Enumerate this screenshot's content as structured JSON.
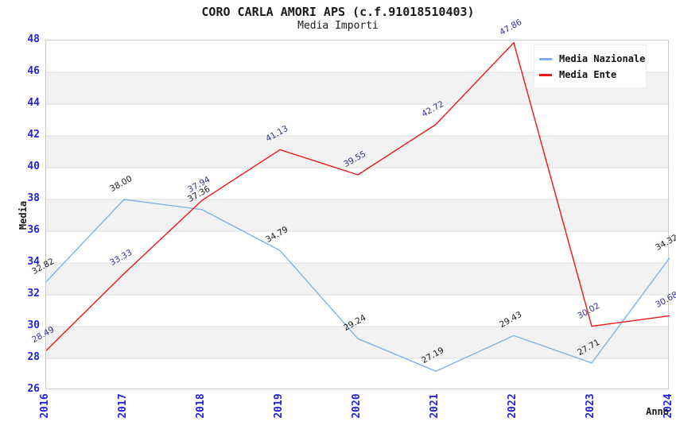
{
  "chart_data": {
    "type": "line",
    "title": "CORO CARLA AMORI APS (c.f.91018510403)",
    "subtitle": "Media Importi",
    "xlabel": "Anno",
    "ylabel": "Media",
    "categories": [
      "2016",
      "2017",
      "2018",
      "2019",
      "2020",
      "2021",
      "2022",
      "2023",
      "2024"
    ],
    "series": [
      {
        "name": "Media Nazionale",
        "line_color": "#7db3e8",
        "label_color": "#1a1a1a",
        "values": [
          32.82,
          38.0,
          37.36,
          34.79,
          29.24,
          27.19,
          29.43,
          27.71,
          34.32
        ]
      },
      {
        "name": "Media Ente",
        "line_color": "#ee1515",
        "label_color": "#333399",
        "values": [
          28.49,
          33.33,
          37.94,
          41.13,
          39.55,
          42.72,
          47.86,
          30.02,
          30.68
        ]
      }
    ],
    "ylim": [
      26,
      48
    ],
    "ytick_step": 2,
    "legend_position": "top-right",
    "grid": "horizontal",
    "colors": {
      "tick_text": "#2222dd",
      "grid_line": "#dcdcdc",
      "plot_border": "#cccccc",
      "band_alt": "#f2f2f2"
    }
  }
}
